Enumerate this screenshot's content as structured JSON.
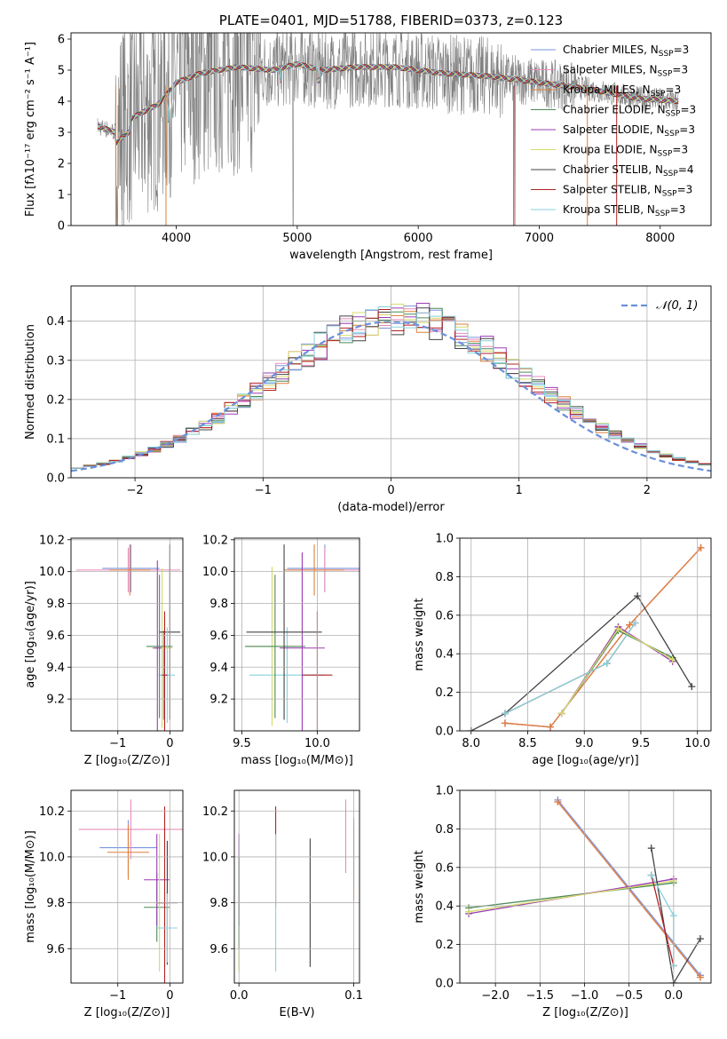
{
  "chart_data": [
    {
      "id": "spectrum",
      "type": "line",
      "title": "PLATE=0401, MJD=51788, FIBERID=0373, z=0.123",
      "xlabel": "wavelength [Angstrom, rest frame]",
      "ylabel": "Flux [fλ10⁻¹⁷ erg cm⁻² s⁻¹ A⁻¹]",
      "xlim": [
        3130,
        8420
      ],
      "ylim": [
        0,
        6.2
      ],
      "xticks": [
        "4000",
        "5000",
        "6000",
        "7000",
        "8000"
      ],
      "yticks": [
        "0",
        "1",
        "2",
        "3",
        "4",
        "5",
        "6"
      ],
      "grid": false,
      "legend_position": "top-right",
      "series": [
        {
          "name": "Chabrier MILES, N",
          "sub": "SSP",
          "suffix": "=3",
          "color": "#7b93dd"
        },
        {
          "name": "Salpeter MILES, N",
          "sub": "SSP",
          "suffix": "=3",
          "color": "#e88bb8"
        },
        {
          "name": "Kroupa MILES, N",
          "sub": "SSP",
          "suffix": "=3",
          "color": "#e07f3a"
        },
        {
          "name": "Chabrier ELODIE, N",
          "sub": "SSP",
          "suffix": "=3",
          "color": "#4d8a57"
        },
        {
          "name": "Salpeter ELODIE, N",
          "sub": "SSP",
          "suffix": "=3",
          "color": "#9a3db3"
        },
        {
          "name": "Kroupa ELODIE, N",
          "sub": "SSP",
          "suffix": "=3",
          "color": "#d6db6a"
        },
        {
          "name": "Chabrier STELIB, N",
          "sub": "SSP",
          "suffix": "=4",
          "color": "#444444"
        },
        {
          "name": "Salpeter STELIB, N",
          "sub": "SSP",
          "suffix": "=3",
          "color": "#b22222"
        },
        {
          "name": "Kroupa STELIB, N",
          "sub": "SSP",
          "suffix": "=3",
          "color": "#86d3dd"
        }
      ],
      "data_color": "#808080",
      "continuum_anchors": [
        [
          3350,
          3.2
        ],
        [
          3500,
          3.0
        ],
        [
          3650,
          3.5
        ],
        [
          3850,
          3.9
        ],
        [
          4000,
          4.6
        ],
        [
          4200,
          4.9
        ],
        [
          4500,
          5.1
        ],
        [
          4800,
          5.0
        ],
        [
          5000,
          5.2
        ],
        [
          5200,
          5.0
        ],
        [
          5500,
          5.1
        ],
        [
          5800,
          5.1
        ],
        [
          6200,
          4.9
        ],
        [
          6600,
          4.8
        ],
        [
          7000,
          4.6
        ],
        [
          7400,
          4.4
        ],
        [
          7800,
          4.1
        ],
        [
          8150,
          4.0
        ]
      ]
    },
    {
      "id": "residuals",
      "type": "histogram",
      "xlabel": "(data-model)/error",
      "ylabel": "Normed distribution",
      "xlim": [
        -2.5,
        2.5
      ],
      "ylim": [
        0,
        0.49
      ],
      "xticks": [
        "−2",
        "−1",
        "0",
        "1",
        "2"
      ],
      "yticks": [
        "0.0",
        "0.1",
        "0.2",
        "0.3",
        "0.4"
      ],
      "grid": true,
      "legend_position": "top-right",
      "legend": "𝒩(0, 1)",
      "normal_color": "#6a8fdb",
      "bin_width": 0.1,
      "bins_start": -2.5
    },
    {
      "id": "age_vs_z",
      "type": "scatter",
      "xlabel": "Z [log₁₀(Z/Z⊙)]",
      "ylabel": "age [log₁₀(age/yr)]",
      "xlim": [
        -1.9,
        0.25
      ],
      "ylim": [
        9.0,
        10.21
      ],
      "xticks": [
        "−1",
        "0"
      ],
      "yticks": [
        "9.2",
        "9.4",
        "9.6",
        "9.8",
        "10.0",
        "10.2"
      ],
      "grid": true,
      "points": [
        {
          "series": 0,
          "x": -0.75,
          "y": 10.02,
          "xerr": 0.55,
          "yerr": 0.15
        },
        {
          "series": 1,
          "x": -0.8,
          "y": 10.01,
          "xerr": 1.0,
          "yerr": 0.14
        },
        {
          "series": 2,
          "x": -0.77,
          "y": 10.01,
          "xerr": 0.4,
          "yerr": 0.16
        },
        {
          "series": 0,
          "x": -0.12,
          "y": 9.35,
          "xerr": 0.1,
          "yerr": 0.28
        },
        {
          "series": 5,
          "x": -0.15,
          "y": 9.52,
          "xerr": 0.2,
          "yerr": 0.5
        },
        {
          "series": 3,
          "x": -0.2,
          "y": 9.53,
          "xerr": 0.25,
          "yerr": 0.45
        },
        {
          "series": 4,
          "x": -0.24,
          "y": 9.52,
          "xerr": 0.08,
          "yerr": 0.55
        },
        {
          "series": 6,
          "x": 0.0,
          "y": 9.62,
          "xerr": 0.2,
          "yerr": 0.55
        },
        {
          "series": 8,
          "x": -0.05,
          "y": 9.35,
          "xerr": 0.15,
          "yerr": 0.3
        },
        {
          "series": 7,
          "x": -0.1,
          "y": 9.35,
          "xerr": 0.05,
          "yerr": 0.4
        }
      ]
    },
    {
      "id": "age_vs_mass",
      "type": "scatter",
      "xlabel": "mass [log₁₀(M/M⊙)]",
      "ylabel": "",
      "xlim": [
        9.45,
        10.28
      ],
      "ylim": [
        9.0,
        10.21
      ],
      "xticks": [
        "9.5",
        "10.0"
      ],
      "yticks": [
        "9.2",
        "9.4",
        "9.6",
        "9.8",
        "10.0",
        "10.2"
      ],
      "grid": true,
      "points": [
        {
          "series": 0,
          "x": 10.05,
          "y": 10.02,
          "xerr": 0.25,
          "yerr": 0.15
        },
        {
          "series": 1,
          "x": 10.05,
          "y": 10.01,
          "xerr": 0.25,
          "yerr": 0.14
        },
        {
          "series": 2,
          "x": 9.98,
          "y": 10.01,
          "xerr": 0.2,
          "yerr": 0.16
        },
        {
          "series": 8,
          "x": 9.8,
          "y": 9.35,
          "xerr": 0.25,
          "yerr": 0.3
        },
        {
          "series": 5,
          "x": 9.7,
          "y": 9.53,
          "xerr": 0.15,
          "yerr": 0.5
        },
        {
          "series": 3,
          "x": 9.72,
          "y": 9.53,
          "xerr": 0.2,
          "yerr": 0.45
        },
        {
          "series": 4,
          "x": 9.9,
          "y": 9.52,
          "xerr": 0.15,
          "yerr": 0.6
        },
        {
          "series": 6,
          "x": 9.78,
          "y": 9.62,
          "xerr": 0.25,
          "yerr": 0.55
        },
        {
          "series": 7,
          "x": 10.0,
          "y": 9.35,
          "xerr": 0.1,
          "yerr": 0.4
        }
      ]
    },
    {
      "id": "weight_vs_age",
      "type": "line",
      "xlabel": "age [log₁₀(age/yr)]",
      "ylabel": "mass weight",
      "xlim": [
        7.9,
        10.12
      ],
      "ylim": [
        0,
        1.0
      ],
      "xticks": [
        "8.0",
        "8.5",
        "9.0",
        "9.5",
        "10.0"
      ],
      "yticks": [
        "0.0",
        "0.2",
        "0.4",
        "0.6",
        "0.8",
        "1.0"
      ],
      "grid": true,
      "series": [
        {
          "series": 0,
          "x": [
            8.3,
            8.7,
            9.4,
            10.03
          ],
          "y": [
            0.04,
            0.02,
            0.55,
            0.95
          ]
        },
        {
          "series": 1,
          "x": [
            8.3,
            8.7,
            9.4,
            10.03
          ],
          "y": [
            0.04,
            0.02,
            0.55,
            0.95
          ]
        },
        {
          "series": 2,
          "x": [
            8.3,
            8.7,
            9.4,
            10.03
          ],
          "y": [
            0.04,
            0.02,
            0.55,
            0.95
          ]
        },
        {
          "series": 3,
          "x": [
            8.8,
            9.3,
            9.78
          ],
          "y": [
            0.09,
            0.52,
            0.38
          ]
        },
        {
          "series": 4,
          "x": [
            8.8,
            9.3,
            9.78
          ],
          "y": [
            0.09,
            0.54,
            0.36
          ]
        },
        {
          "series": 5,
          "x": [
            8.8,
            9.3,
            9.78
          ],
          "y": [
            0.09,
            0.53,
            0.37
          ]
        },
        {
          "series": 6,
          "x": [
            8.0,
            8.3,
            9.47,
            9.95
          ],
          "y": [
            0.0,
            0.09,
            0.7,
            0.23
          ]
        },
        {
          "series": 7,
          "x": [
            8.3,
            9.2,
            9.45
          ],
          "y": [
            0.09,
            0.35,
            0.56
          ]
        },
        {
          "series": 8,
          "x": [
            8.3,
            9.2,
            9.45
          ],
          "y": [
            0.09,
            0.35,
            0.56
          ]
        }
      ]
    },
    {
      "id": "mass_vs_z",
      "type": "scatter",
      "xlabel": "Z [log₁₀(Z/Z⊙)]",
      "ylabel": "mass [log₁₀(M/M⊙)]",
      "xlim": [
        -1.9,
        0.25
      ],
      "ylim": [
        9.45,
        10.29
      ],
      "xticks": [
        "−1",
        "0"
      ],
      "yticks": [
        "9.6",
        "9.8",
        "10.0",
        "10.2"
      ],
      "grid": true,
      "points": [
        {
          "series": 0,
          "x": -0.8,
          "y": 10.04,
          "xerr": 0.55,
          "yerr": 0.12
        },
        {
          "series": 1,
          "x": -0.75,
          "y": 10.12,
          "xerr": 1.0,
          "yerr": 0.13
        },
        {
          "series": 2,
          "x": -0.8,
          "y": 10.02,
          "xerr": 0.4,
          "yerr": 0.12
        },
        {
          "series": 3,
          "x": -0.25,
          "y": 9.78,
          "xerr": 0.25,
          "yerr": 0.15
        },
        {
          "series": 4,
          "x": -0.25,
          "y": 9.9,
          "xerr": 0.25,
          "yerr": 0.2
        },
        {
          "series": 5,
          "x": -0.2,
          "y": 9.8,
          "xerr": 0.1,
          "yerr": 0.3
        },
        {
          "series": 6,
          "x": -0.05,
          "y": 9.8,
          "xerr": 0.2,
          "yerr": 0.27
        },
        {
          "series": 7,
          "x": -0.1,
          "y": 9.8,
          "xerr": 0.1,
          "yerr": 0.42
        },
        {
          "series": 8,
          "x": -0.05,
          "y": 9.69,
          "xerr": 0.2,
          "yerr": 0.15
        }
      ]
    },
    {
      "id": "mass_vs_ebv",
      "type": "scatter",
      "xlabel": "E(B-V)",
      "ylabel": "",
      "xlim": [
        -0.004,
        0.105
      ],
      "ylim": [
        9.45,
        10.29
      ],
      "xticks": [
        "0.0",
        "0.1"
      ],
      "yticks": [
        "9.6",
        "9.8",
        "10.0",
        "10.2"
      ],
      "grid": true,
      "points": [
        {
          "series": 5,
          "x": 0.0,
          "y": 9.75,
          "xerr": 0.0,
          "yerr": 0.25
        },
        {
          "series": 4,
          "x": 0.0,
          "y": 9.9,
          "xerr": 0.0,
          "yerr": 0.2
        },
        {
          "series": 3,
          "x": 0.0,
          "y": 9.8,
          "xerr": 0.0,
          "yerr": 0.2
        },
        {
          "series": 7,
          "x": 0.032,
          "y": 10.0,
          "xerr": 0.0,
          "yerr": 0.22
        },
        {
          "series": 8,
          "x": 0.032,
          "y": 9.8,
          "xerr": 0.0,
          "yerr": 0.3
        },
        {
          "series": 6,
          "x": 0.062,
          "y": 9.8,
          "xerr": 0.0,
          "yerr": 0.28
        },
        {
          "series": 1,
          "x": 0.093,
          "y": 10.09,
          "xerr": 0.0,
          "yerr": 0.16
        },
        {
          "series": 2,
          "x": 0.1,
          "y": 9.97,
          "xerr": 0.0,
          "yerr": 0.16
        },
        {
          "series": 0,
          "x": 0.1,
          "y": 10.02,
          "xerr": 0.0,
          "yerr": 0.15
        }
      ]
    },
    {
      "id": "weight_vs_z",
      "type": "line",
      "xlabel": "Z [log₁₀(Z/Z⊙)]",
      "ylabel": "mass weight",
      "xlim": [
        -2.4,
        0.42
      ],
      "ylim": [
        0,
        1.0
      ],
      "xticks": [
        "−2.0",
        "−1.5",
        "−1.0",
        "−0.5",
        "0.0"
      ],
      "yticks": [
        "0.0",
        "0.2",
        "0.4",
        "0.6",
        "0.8",
        "1.0"
      ],
      "grid": true,
      "series": [
        {
          "series": 0,
          "x": [
            -1.3,
            0.3
          ],
          "y": [
            0.95,
            0.04
          ]
        },
        {
          "series": 1,
          "x": [
            -1.3,
            0.3
          ],
          "y": [
            0.94,
            0.03
          ]
        },
        {
          "series": 2,
          "x": [
            -1.3,
            0.3
          ],
          "y": [
            0.94,
            0.03
          ]
        },
        {
          "series": 3,
          "x": [
            -2.3,
            0.0
          ],
          "y": [
            0.39,
            0.52
          ]
        },
        {
          "series": 4,
          "x": [
            -2.3,
            0.0
          ],
          "y": [
            0.36,
            0.54
          ]
        },
        {
          "series": 5,
          "x": [
            -2.3,
            0.0
          ],
          "y": [
            0.37,
            0.53
          ]
        },
        {
          "series": 6,
          "x": [
            -0.25,
            0.0,
            0.0,
            0.3
          ],
          "y": [
            0.7,
            0.0,
            0.0,
            0.23
          ]
        },
        {
          "series": 7,
          "x": [
            -0.25,
            0.0
          ],
          "y": [
            0.56,
            0.09
          ]
        },
        {
          "series": 8,
          "x": [
            -0.25,
            0.0,
            0.0
          ],
          "y": [
            0.56,
            0.35,
            0.09
          ]
        }
      ]
    }
  ]
}
